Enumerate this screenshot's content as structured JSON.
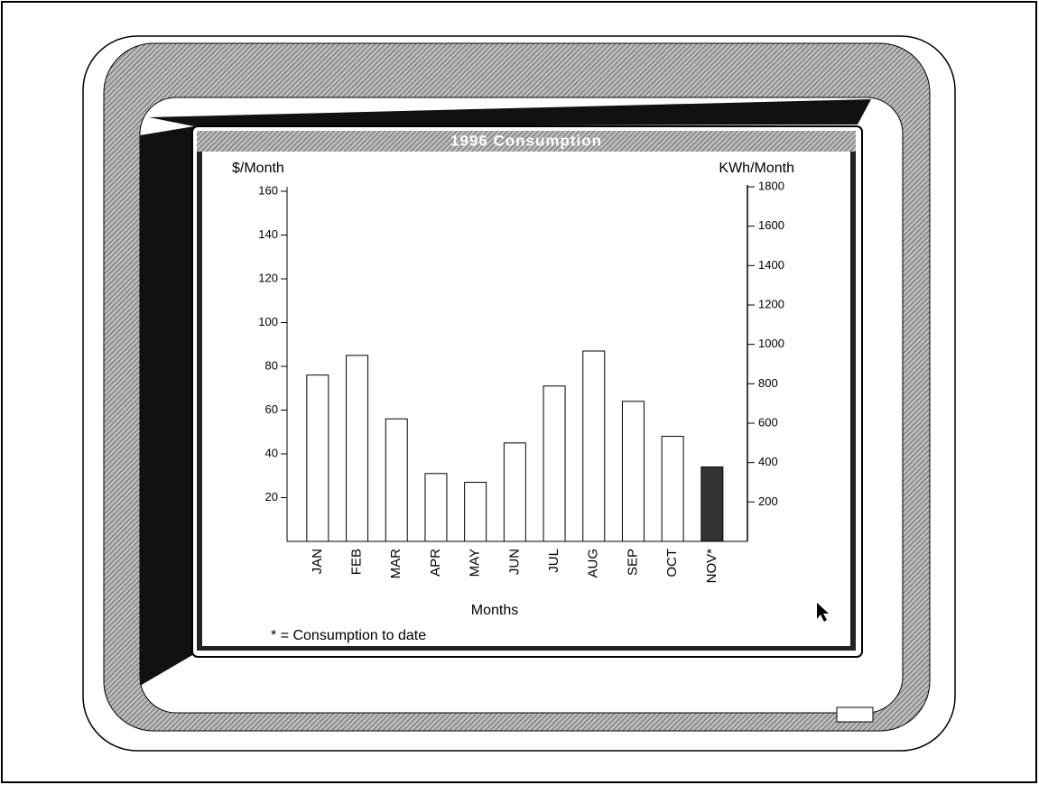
{
  "chart_data": {
    "type": "bar",
    "title": "1996 Consumption",
    "y_label": "$/Month",
    "y2_label": "KWh/Month",
    "x_label": "Months",
    "note": "* = Consumption to date",
    "categories": [
      "JAN",
      "FEB",
      "MAR",
      "APR",
      "MAY",
      "JUN",
      "JUL",
      "AUG",
      "SEP",
      "OCT",
      "NOV*"
    ],
    "values": [
      76,
      85,
      56,
      31,
      27,
      45,
      71,
      87,
      64,
      48,
      34
    ],
    "colors": [
      "#ffffff",
      "#ffffff",
      "#ffffff",
      "#ffffff",
      "#ffffff",
      "#ffffff",
      "#ffffff",
      "#ffffff",
      "#ffffff",
      "#ffffff",
      "#333333"
    ],
    "ylim": [
      0,
      160
    ],
    "yticks": [
      20,
      40,
      60,
      80,
      100,
      120,
      140,
      160
    ],
    "y2lim": [
      0,
      1800
    ],
    "y2ticks": [
      200,
      400,
      600,
      800,
      1000,
      1200,
      1400,
      1600,
      1800
    ]
  }
}
